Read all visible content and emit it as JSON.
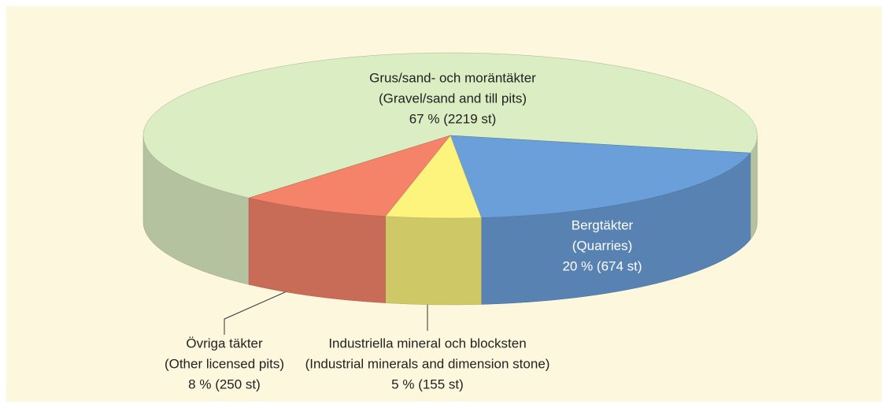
{
  "chart_data": {
    "type": "pie3d",
    "categories": [
      "Grus/sand- och moräntäkter",
      "Bergtäkter",
      "Industriella mineral och blocksten",
      "Övriga täkter"
    ],
    "subcategories": [
      "(Gravel/sand and till pits)",
      "(Quarries)",
      "(Industrial minerals and dimension stone)",
      "(Other licensed pits)"
    ],
    "values": [
      67,
      20,
      5,
      8
    ],
    "value_labels": [
      "67 % (2219 st)",
      "20 % (674 st)",
      "5 % (155 st)",
      "8 % (250 st)"
    ],
    "colors": [
      "#dbedc2",
      "#6a9fd9",
      "#fdf47e",
      "#f4836a"
    ]
  }
}
